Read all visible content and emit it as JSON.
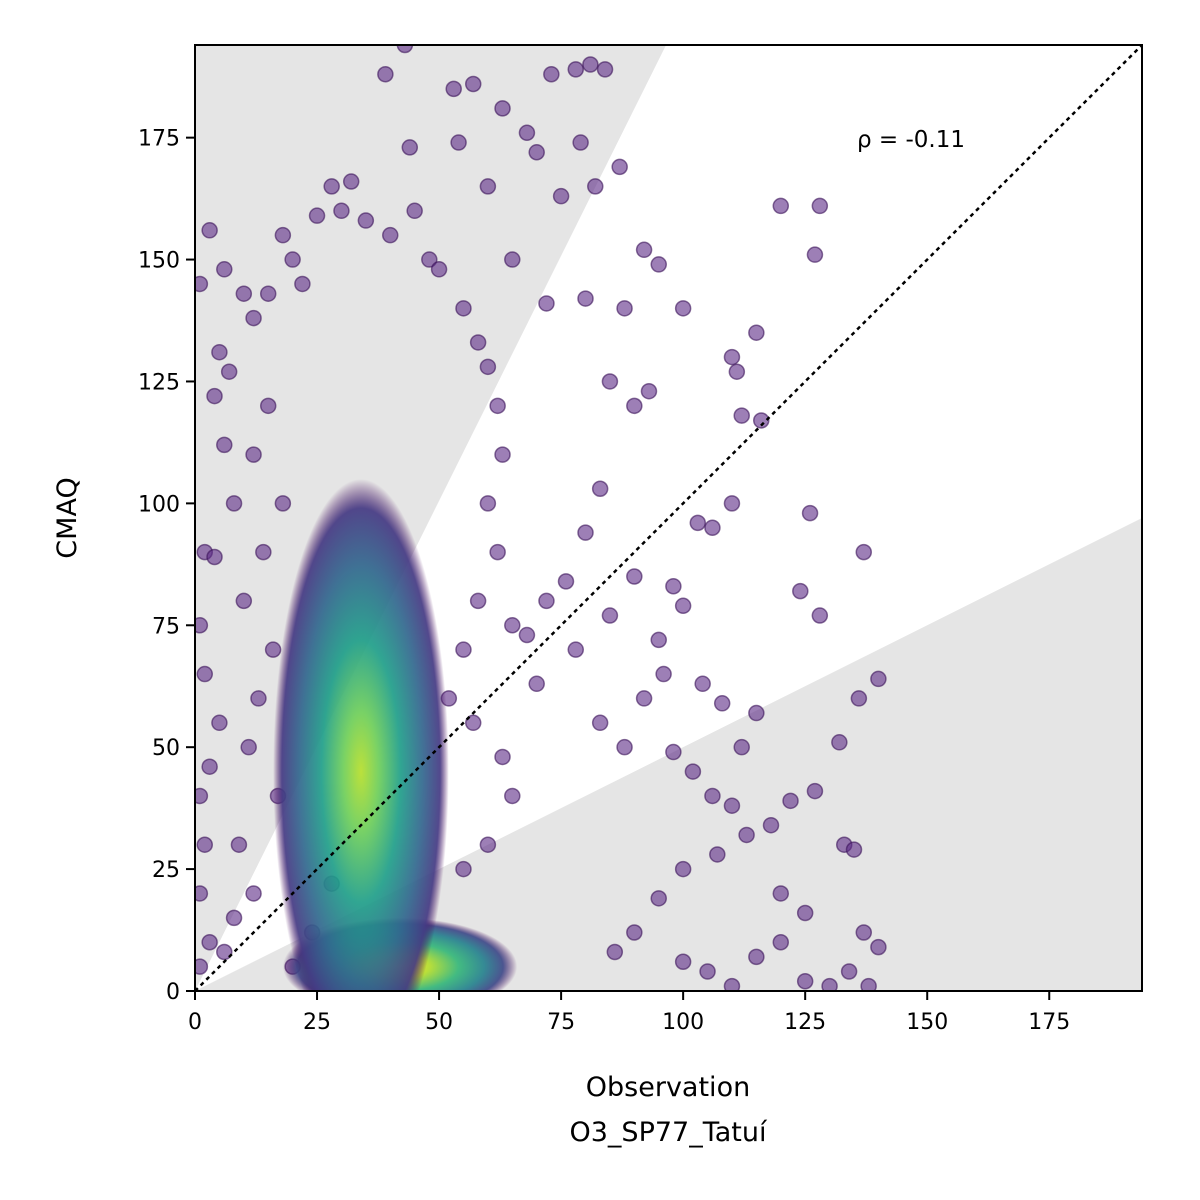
{
  "chart_data": {
    "type": "scatter",
    "title": "",
    "xlabel": "Observation",
    "xlabel_sub": "O3_SP77_Tatuí",
    "ylabel": "CMAQ",
    "xlim": [
      0,
      194
    ],
    "ylim": [
      0,
      194
    ],
    "x_ticks": [
      0,
      25,
      50,
      75,
      100,
      125,
      150,
      175
    ],
    "x_tick_labels": [
      "0",
      "25",
      "50",
      "75",
      "100",
      "125",
      "150",
      "175"
    ],
    "y_ticks": [
      0,
      25,
      50,
      75,
      100,
      125,
      150,
      175
    ],
    "y_tick_labels": [
      "0",
      "25",
      "50",
      "75",
      "100",
      "125",
      "150",
      "175"
    ],
    "annotation": "ρ = -0.11",
    "reference_line": {
      "style": "dotted",
      "slope": 1,
      "intercept": 0,
      "color": "#000000"
    },
    "shaded_regions": [
      {
        "description": "upper-left wedge",
        "polygon": [
          [
            0,
            0
          ],
          [
            0,
            194
          ],
          [
            96.5,
            194
          ]
        ],
        "color": "#e5e5e5"
      },
      {
        "description": "lower-right wedge",
        "polygon": [
          [
            0,
            0
          ],
          [
            194,
            0
          ],
          [
            194,
            97
          ]
        ],
        "color": "#e5e5e5"
      }
    ],
    "point_color_scale": "viridis (point density)",
    "density_clusters": [
      {
        "x": 42,
        "y": 5,
        "spread_x": 12,
        "spread_y": 5,
        "peak": "yellow"
      },
      {
        "x": 34,
        "y": 45,
        "spread_x": 9,
        "spread_y": 30,
        "peak": "yellow-green"
      }
    ],
    "sample_points": [
      [
        1,
        145
      ],
      [
        3,
        156
      ],
      [
        6,
        148
      ],
      [
        5,
        131
      ],
      [
        10,
        143
      ],
      [
        18,
        155
      ],
      [
        25,
        159
      ],
      [
        28,
        165
      ],
      [
        32,
        166
      ],
      [
        39,
        188
      ],
      [
        43,
        194
      ],
      [
        44,
        173
      ],
      [
        53,
        185
      ],
      [
        54,
        174
      ],
      [
        57,
        186
      ],
      [
        63,
        181
      ],
      [
        68,
        176
      ],
      [
        73,
        188
      ],
      [
        78,
        189
      ],
      [
        81,
        190
      ],
      [
        84,
        189
      ],
      [
        87,
        169
      ],
      [
        79,
        174
      ],
      [
        60,
        165
      ],
      [
        70,
        172
      ],
      [
        75,
        163
      ],
      [
        82,
        165
      ],
      [
        65,
        150
      ],
      [
        72,
        141
      ],
      [
        80,
        142
      ],
      [
        88,
        140
      ],
      [
        92,
        152
      ],
      [
        95,
        149
      ],
      [
        100,
        140
      ],
      [
        110,
        130
      ],
      [
        111,
        127
      ],
      [
        115,
        135
      ],
      [
        120,
        161
      ],
      [
        127,
        151
      ],
      [
        128,
        161
      ],
      [
        137,
        90
      ],
      [
        126,
        98
      ],
      [
        124,
        82
      ],
      [
        128,
        77
      ],
      [
        140,
        64
      ],
      [
        136,
        60
      ],
      [
        132,
        51
      ],
      [
        127,
        41
      ],
      [
        122,
        39
      ],
      [
        133,
        30
      ],
      [
        135,
        29
      ],
      [
        137,
        12
      ],
      [
        140,
        9
      ],
      [
        134,
        4
      ],
      [
        138,
        1
      ],
      [
        125,
        16
      ],
      [
        120,
        20
      ],
      [
        118,
        34
      ],
      [
        115,
        57
      ],
      [
        112,
        50
      ],
      [
        108,
        59
      ],
      [
        104,
        63
      ],
      [
        100,
        79
      ],
      [
        98,
        83
      ],
      [
        103,
        96
      ],
      [
        106,
        95
      ],
      [
        110,
        100
      ],
      [
        112,
        118
      ],
      [
        116,
        117
      ],
      [
        90,
        120
      ],
      [
        93,
        123
      ],
      [
        85,
        125
      ],
      [
        83,
        103
      ],
      [
        80,
        94
      ],
      [
        76,
        84
      ],
      [
        72,
        80
      ],
      [
        68,
        73
      ],
      [
        65,
        75
      ],
      [
        70,
        63
      ],
      [
        78,
        70
      ],
      [
        85,
        77
      ],
      [
        90,
        85
      ],
      [
        95,
        72
      ],
      [
        96,
        65
      ],
      [
        92,
        60
      ],
      [
        88,
        50
      ],
      [
        83,
        55
      ],
      [
        98,
        49
      ],
      [
        102,
        45
      ],
      [
        106,
        40
      ],
      [
        110,
        38
      ],
      [
        113,
        32
      ],
      [
        107,
        28
      ],
      [
        100,
        25
      ],
      [
        95,
        19
      ],
      [
        90,
        12
      ],
      [
        86,
        8
      ],
      [
        100,
        6
      ],
      [
        105,
        4
      ],
      [
        115,
        7
      ],
      [
        120,
        10
      ],
      [
        125,
        2
      ],
      [
        130,
        1
      ],
      [
        110,
        1
      ],
      [
        2,
        90
      ],
      [
        4,
        89
      ],
      [
        1,
        75
      ],
      [
        2,
        65
      ],
      [
        5,
        55
      ],
      [
        3,
        46
      ],
      [
        1,
        40
      ],
      [
        2,
        30
      ],
      [
        1,
        20
      ],
      [
        3,
        10
      ],
      [
        1,
        5
      ],
      [
        6,
        112
      ],
      [
        8,
        100
      ],
      [
        4,
        122
      ],
      [
        7,
        127
      ],
      [
        12,
        138
      ],
      [
        15,
        143
      ],
      [
        20,
        150
      ],
      [
        22,
        145
      ],
      [
        30,
        160
      ],
      [
        35,
        158
      ],
      [
        40,
        155
      ],
      [
        45,
        160
      ],
      [
        48,
        150
      ],
      [
        50,
        148
      ],
      [
        55,
        140
      ],
      [
        58,
        133
      ],
      [
        60,
        128
      ],
      [
        62,
        120
      ],
      [
        63,
        110
      ],
      [
        60,
        100
      ],
      [
        62,
        90
      ],
      [
        58,
        80
      ],
      [
        55,
        70
      ],
      [
        52,
        60
      ],
      [
        57,
        55
      ],
      [
        63,
        48
      ],
      [
        65,
        40
      ],
      [
        60,
        30
      ],
      [
        55,
        25
      ],
      [
        15,
        120
      ],
      [
        12,
        110
      ],
      [
        18,
        100
      ],
      [
        14,
        90
      ],
      [
        10,
        80
      ],
      [
        16,
        70
      ],
      [
        13,
        60
      ],
      [
        11,
        50
      ],
      [
        17,
        40
      ],
      [
        9,
        30
      ],
      [
        12,
        20
      ],
      [
        8,
        15
      ],
      [
        6,
        8
      ],
      [
        20,
        5
      ],
      [
        24,
        12
      ],
      [
        28,
        22
      ]
    ]
  }
}
